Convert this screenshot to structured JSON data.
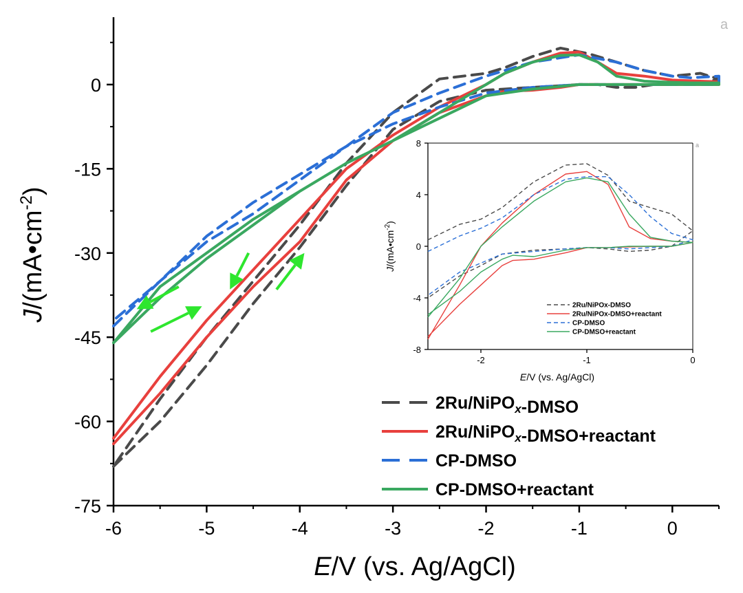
{
  "chart_data": {
    "type": "line",
    "title": "",
    "xlabel": {
      "italic": "E",
      "rest": "/V (vs. Ag/AgCl)"
    },
    "ylabel": {
      "italic": "J",
      "rest": "/(mA•cm",
      "sup": "-2",
      "close": ")"
    },
    "xlim": [
      -6,
      0.5
    ],
    "ylim": [
      -75,
      12
    ],
    "xticks": [
      "-6",
      "-5",
      "-4",
      "-3",
      "-2",
      "-1",
      "0"
    ],
    "xtick_values": [
      -6,
      -5,
      -4,
      -3,
      -2,
      -1,
      0
    ],
    "yticks": [
      "0",
      "-15",
      "-30",
      "-45",
      "-60",
      "-75"
    ],
    "ytick_values": [
      0,
      -15,
      -30,
      -45,
      -60,
      -75
    ],
    "grid": false,
    "legend_position": "bottom-right",
    "corner_mark": "a",
    "series": [
      {
        "name": "2Ru/NiPOx-DMSO",
        "legend_parts": [
          {
            "t": "2Ru/NiPO"
          },
          {
            "t": "x",
            "sub": true
          },
          {
            "t": "-DMSO"
          }
        ],
        "color": "#4a4a4a",
        "dash": "dashed",
        "x": [
          -6,
          -5.5,
          -5,
          -4.5,
          -4,
          -3.5,
          -3,
          -2.5,
          -2,
          -1.5,
          -1.2,
          -1,
          -0.8,
          -0.6,
          -0.4,
          -0.2,
          0,
          0.3,
          0.5,
          0.3,
          0,
          -0.3,
          -0.6,
          -0.9,
          -1.2,
          -1.5,
          -1.8,
          -2,
          -2.5,
          -3,
          -3.5,
          -4,
          -4.5,
          -5,
          -5.5,
          -6
        ],
        "y": [
          -68,
          -60,
          -50,
          -39,
          -29,
          -18,
          -8,
          -3,
          -1,
          -0.5,
          -0.2,
          0,
          0,
          -0.5,
          -0.5,
          0,
          0,
          0.2,
          1,
          2,
          1.5,
          2.5,
          4,
          5.5,
          6.5,
          5,
          3,
          2,
          1,
          -5,
          -14,
          -25,
          -35,
          -45,
          -56,
          -68
        ]
      },
      {
        "name": "2Ru/NiPOx-DMSO+reactant",
        "legend_parts": [
          {
            "t": "2Ru/NiPO"
          },
          {
            "t": "x",
            "sub": true
          },
          {
            "t": "-DMSO+reactant"
          }
        ],
        "color": "#e8403d",
        "dash": "solid",
        "x": [
          -6,
          -5.5,
          -5,
          -4.5,
          -4,
          -3.5,
          -3,
          -2.5,
          -2,
          -1.8,
          -1.5,
          -1.2,
          -1,
          -0.5,
          0,
          0.5,
          0.5,
          0.3,
          0,
          -0.3,
          -0.6,
          -0.8,
          -1,
          -1.2,
          -1.5,
          -1.8,
          -2,
          -2.5,
          -3,
          -3.5,
          -4,
          -4.5,
          -5,
          -5.5,
          -6
        ],
        "y": [
          -64,
          -55,
          -45,
          -36,
          -28,
          -17,
          -10,
          -5,
          -2,
          -1.2,
          -1,
          -0.5,
          0,
          0,
          0,
          0,
          0.5,
          0.6,
          0.8,
          1.5,
          2,
          4,
          5.8,
          5.6,
          4,
          2,
          0,
          -4,
          -9,
          -15,
          -24,
          -33,
          -42,
          -52,
          -63
        ]
      },
      {
        "name": "CP-DMSO",
        "legend_parts": [
          {
            "t": "CP-DMSO"
          }
        ],
        "color": "#2b6fd6",
        "dash": "dashed",
        "x": [
          -6,
          -5.5,
          -5,
          -4.5,
          -4,
          -3.5,
          -3,
          -2.5,
          -2,
          -1.5,
          -1,
          -0.5,
          0,
          0.5,
          0.5,
          0.2,
          0,
          -0.3,
          -0.6,
          -1,
          -1.5,
          -1.8,
          -2,
          -2.5,
          -3,
          -3.5,
          -4,
          -4.5,
          -5,
          -5.5,
          -6
        ],
        "y": [
          -43,
          -35,
          -27,
          -21,
          -16,
          -11,
          -7,
          -4,
          -1.5,
          -0.5,
          0,
          0,
          0,
          0,
          1.5,
          1.2,
          1.5,
          2.5,
          4,
          5.3,
          4,
          2.5,
          1.5,
          -1.5,
          -5,
          -11,
          -17,
          -23,
          -28,
          -35,
          -42
        ]
      },
      {
        "name": "CP-DMSO+reactant",
        "legend_parts": [
          {
            "t": "CP-DMSO+reactant"
          }
        ],
        "color": "#3aa860",
        "dash": "solid",
        "x": [
          -6,
          -5.5,
          -5,
          -4.5,
          -4,
          -3.5,
          -3,
          -2.5,
          -2,
          -1.5,
          -1,
          -0.5,
          0,
          0.5,
          0.5,
          0.2,
          0,
          -0.3,
          -0.6,
          -0.8,
          -1,
          -1.2,
          -1.5,
          -1.8,
          -2,
          -2.5,
          -3,
          -3.5,
          -4,
          -4.5,
          -5,
          -5.5,
          -6
        ],
        "y": [
          -46,
          -38,
          -31,
          -25,
          -19,
          -14,
          -10,
          -6,
          -2,
          -0.8,
          0,
          0,
          0,
          0,
          0.3,
          0.3,
          0.4,
          0.6,
          1.5,
          4,
          5.3,
          5.2,
          4,
          2,
          0,
          -5,
          -10,
          -14,
          -19,
          -24,
          -30,
          -36,
          -46
        ]
      }
    ],
    "arrows": [
      {
        "x1": -5.3,
        "y1": -36,
        "x2": -5.75,
        "y2": -40,
        "color": "#2ee62e"
      },
      {
        "x1": -5.6,
        "y1": -44,
        "x2": -5.05,
        "y2": -39.5,
        "color": "#2ee62e"
      },
      {
        "x1": -4.55,
        "y1": -30,
        "x2": -4.75,
        "y2": -36.5,
        "color": "#2ee62e"
      },
      {
        "x1": -4.25,
        "y1": -36.5,
        "x2": -3.95,
        "y2": -30,
        "color": "#2ee62e"
      }
    ],
    "inset": {
      "type": "line",
      "xlabel": {
        "italic": "E",
        "rest": "/V (vs. Ag/AgCl)"
      },
      "ylabel": {
        "italic": "J",
        "rest": "/(mA•cm",
        "sup": "-2",
        "close": ")"
      },
      "xlim": [
        -2.5,
        0
      ],
      "ylim": [
        -8,
        8
      ],
      "xticks": [
        "-2",
        "-1",
        "0"
      ],
      "xtick_values": [
        -2,
        -1,
        0
      ],
      "yticks": [
        "8",
        "4",
        "0",
        "-4",
        "-8"
      ],
      "ytick_values": [
        8,
        4,
        0,
        -4,
        -8
      ],
      "corner_mark": "a",
      "legend_names": [
        "2Ru/NiPOx-DMSO",
        "2Ru/NiPOx-DMSO+reactant",
        "CP-DMSO",
        "CP-DMSO+reactant"
      ],
      "series": [
        {
          "name": "2Ru/NiPOx-DMSO",
          "color": "#4a4a4a",
          "dash": "dashed",
          "x": [
            -2.5,
            -2.2,
            -2,
            -1.8,
            -1.5,
            -1.2,
            -1,
            -0.8,
            -0.6,
            -0.4,
            -0.2,
            0,
            -0.2,
            -0.4,
            -0.6,
            -0.8,
            -1,
            -1.2,
            -1.5,
            -1.8,
            -2,
            -2.2,
            -2.5
          ],
          "y": [
            0.5,
            1.7,
            2.1,
            3,
            5,
            6.3,
            6.4,
            5.5,
            3.5,
            3,
            2.5,
            1.2,
            0,
            -0.3,
            -0.4,
            -0.2,
            -0.1,
            -0.2,
            -0.3,
            -0.6,
            -1.5,
            -2.3,
            -4
          ]
        },
        {
          "name": "2Ru/NiPOx-DMSO+reactant",
          "color": "#e8403d",
          "dash": "solid",
          "x": [
            -2.5,
            -2.2,
            -2,
            -1.8,
            -1.5,
            -1.2,
            -1,
            -0.8,
            -0.6,
            -0.4,
            -0.2,
            0,
            -0.2,
            -0.4,
            -0.6,
            -0.8,
            -1,
            -1.2,
            -1.5,
            -1.7,
            -1.8,
            -2,
            -2.2,
            -2.5
          ],
          "y": [
            -7.2,
            -3,
            0,
            1.8,
            4,
            5.6,
            5.8,
            4.8,
            1.5,
            0.6,
            0.4,
            0.3,
            0,
            0,
            -0.05,
            -0.1,
            -0.1,
            -0.5,
            -1,
            -1.1,
            -1.5,
            -3,
            -4.5,
            -7
          ]
        },
        {
          "name": "CP-DMSO",
          "color": "#2b6fd6",
          "dash": "dashed",
          "x": [
            -2.5,
            -2.2,
            -2,
            -1.8,
            -1.5,
            -1.2,
            -1,
            -0.8,
            -0.6,
            -0.4,
            -0.2,
            0,
            -0.2,
            -0.4,
            -0.6,
            -0.8,
            -1,
            -1.2,
            -1.5,
            -1.8,
            -2,
            -2.2,
            -2.5
          ],
          "y": [
            -0.4,
            0.8,
            1.4,
            2.2,
            4,
            5.2,
            5.4,
            5.4,
            4,
            2.3,
            1,
            0.5,
            0,
            -0.1,
            -0.2,
            -0.1,
            -0.1,
            -0.2,
            -0.4,
            -0.6,
            -1.3,
            -2,
            -3.8
          ]
        },
        {
          "name": "CP-DMSO+reactant",
          "color": "#3aa860",
          "dash": "solid",
          "x": [
            -2.5,
            -2.2,
            -2,
            -1.8,
            -1.5,
            -1.2,
            -1,
            -0.8,
            -0.6,
            -0.4,
            -0.2,
            0,
            -0.2,
            -0.4,
            -0.6,
            -0.8,
            -1,
            -1.2,
            -1.5,
            -1.7,
            -1.8,
            -2,
            -2.2,
            -2.5
          ],
          "y": [
            -5.5,
            -2.5,
            0,
            1.5,
            3.5,
            5,
            5.3,
            5,
            2.5,
            0.7,
            0.4,
            0.3,
            0,
            0,
            0,
            -0.1,
            -0.1,
            -0.3,
            -0.8,
            -0.7,
            -1,
            -2,
            -3.5,
            -5.3
          ]
        }
      ]
    }
  }
}
